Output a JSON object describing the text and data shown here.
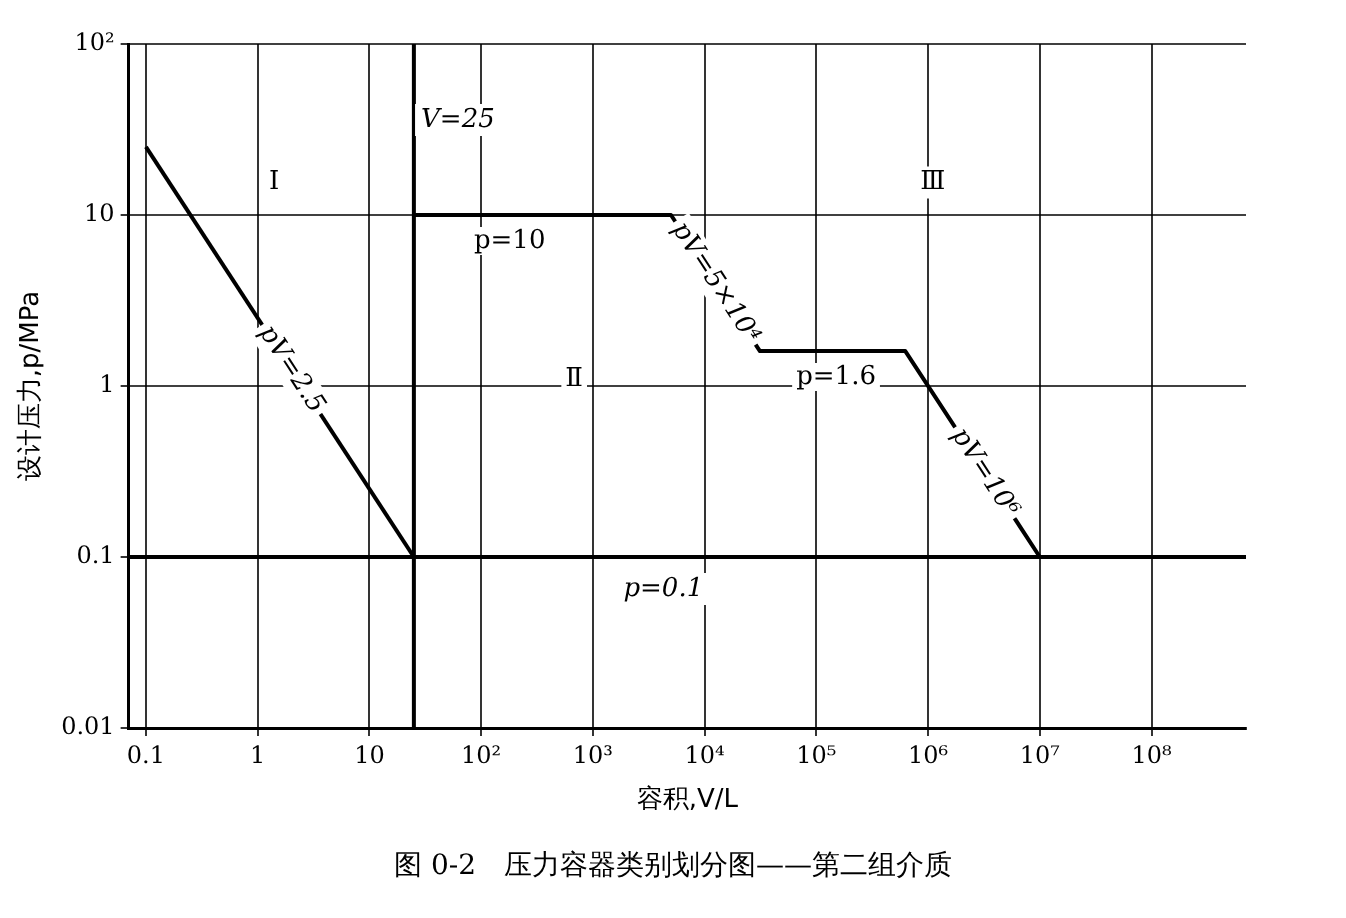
{
  "chart_data": {
    "type": "line",
    "xlabel": "容积,V/L",
    "ylabel": "设计压力,p/MPa",
    "log": "xy",
    "grid": true,
    "legend": false,
    "marker": "none",
    "line_style": "solid",
    "xlim": [
      0.07,
      700000000
    ],
    "ylim": [
      0.01,
      100
    ],
    "xticks": [
      0.1,
      1,
      10,
      {
        "value": 100,
        "label": "10²"
      },
      {
        "value": 1000,
        "label": "10³"
      },
      {
        "value": 10000,
        "label": "10⁴"
      },
      {
        "value": 100000,
        "label": "10⁵"
      },
      {
        "value": 1000000,
        "label": "10⁶"
      },
      {
        "value": 10000000,
        "label": "10⁷"
      },
      {
        "value": 100000000,
        "label": "10⁸"
      }
    ],
    "yticks": [
      0.01,
      0.1,
      1,
      10,
      {
        "value": 100,
        "label": "10²"
      }
    ],
    "series": [
      {
        "color": "#000000",
        "x": [
          0.1,
          25
        ],
        "values": [
          25,
          0.1
        ]
      },
      {
        "color": "#000000",
        "x": [
          25,
          5000,
          31250,
          625000,
          10000000
        ],
        "values": [
          10,
          10,
          1.6,
          1.6,
          0.1
        ]
      }
    ],
    "ref_lines": [
      {
        "axis": "x",
        "value": 25,
        "label": "V=25",
        "color": "#000000"
      },
      {
        "axis": "y",
        "value": 0.1,
        "label": "p=0.1",
        "color": "#000000"
      }
    ],
    "annotations": [
      {
        "text": "pV=2.5",
        "x": 2,
        "y": 1.25
      },
      {
        "text": "pV=5×10⁴",
        "x": 12500,
        "y": 4
      },
      {
        "text": "pV=10⁶",
        "x": 3200000,
        "y": 0.31
      },
      {
        "text": "p=10",
        "x": 180,
        "y": 10
      },
      {
        "text": "p=1.6",
        "x": 150000,
        "y": 1.6
      },
      {
        "text": "Ⅰ",
        "x": 1.4,
        "y": 15.5
      },
      {
        "text": "Ⅱ",
        "x": 680,
        "y": 1.1
      },
      {
        "text": "Ⅲ",
        "x": 1100000,
        "y": 15.5
      },
      "图 0-2　压力容器类别划分图——第二组介质"
    ]
  }
}
